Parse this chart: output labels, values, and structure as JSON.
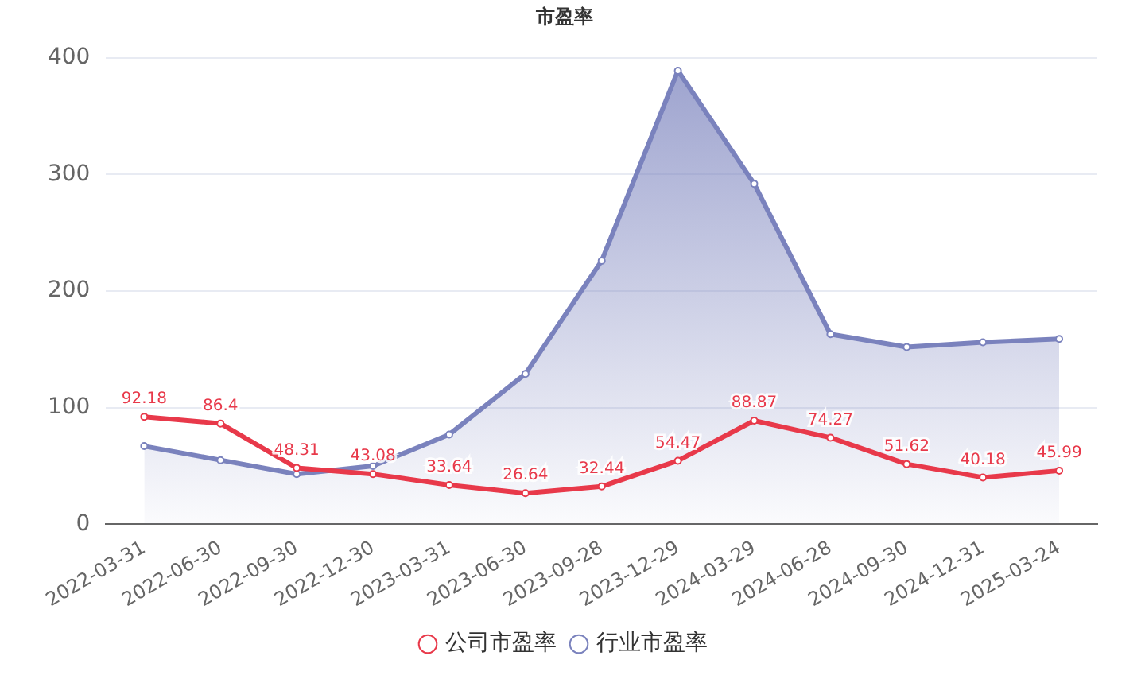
{
  "chart_data": {
    "type": "line",
    "title": "市盈率",
    "categories": [
      "2022-03-31",
      "2022-06-30",
      "2022-09-30",
      "2022-12-30",
      "2023-03-31",
      "2023-06-30",
      "2023-09-28",
      "2023-12-29",
      "2024-03-29",
      "2024-06-28",
      "2024-09-30",
      "2024-12-31",
      "2025-03-24"
    ],
    "series": [
      {
        "name": "公司市盈率",
        "type": "line",
        "color": "#e8394a",
        "values": [
          92.18,
          86.4,
          48.31,
          43.08,
          33.64,
          26.64,
          32.44,
          54.47,
          88.87,
          74.27,
          51.62,
          40.18,
          45.99
        ],
        "value_labels": [
          "92.18",
          "86.4",
          "48.31",
          "43.08",
          "33.64",
          "26.64",
          "32.44",
          "54.47",
          "88.87",
          "74.27",
          "51.62",
          "40.18",
          "45.99"
        ]
      },
      {
        "name": "行业市盈率",
        "type": "area",
        "color": "#7a82bd",
        "values": [
          67,
          55,
          43,
          50,
          77,
          129,
          226,
          389,
          292,
          163,
          152,
          156,
          159
        ]
      }
    ],
    "ylim": [
      0,
      400
    ],
    "yticks": [
      0,
      100,
      200,
      300,
      400
    ],
    "grid": "y",
    "legend": "bottom",
    "marker": "circle",
    "line_style": "solid"
  }
}
